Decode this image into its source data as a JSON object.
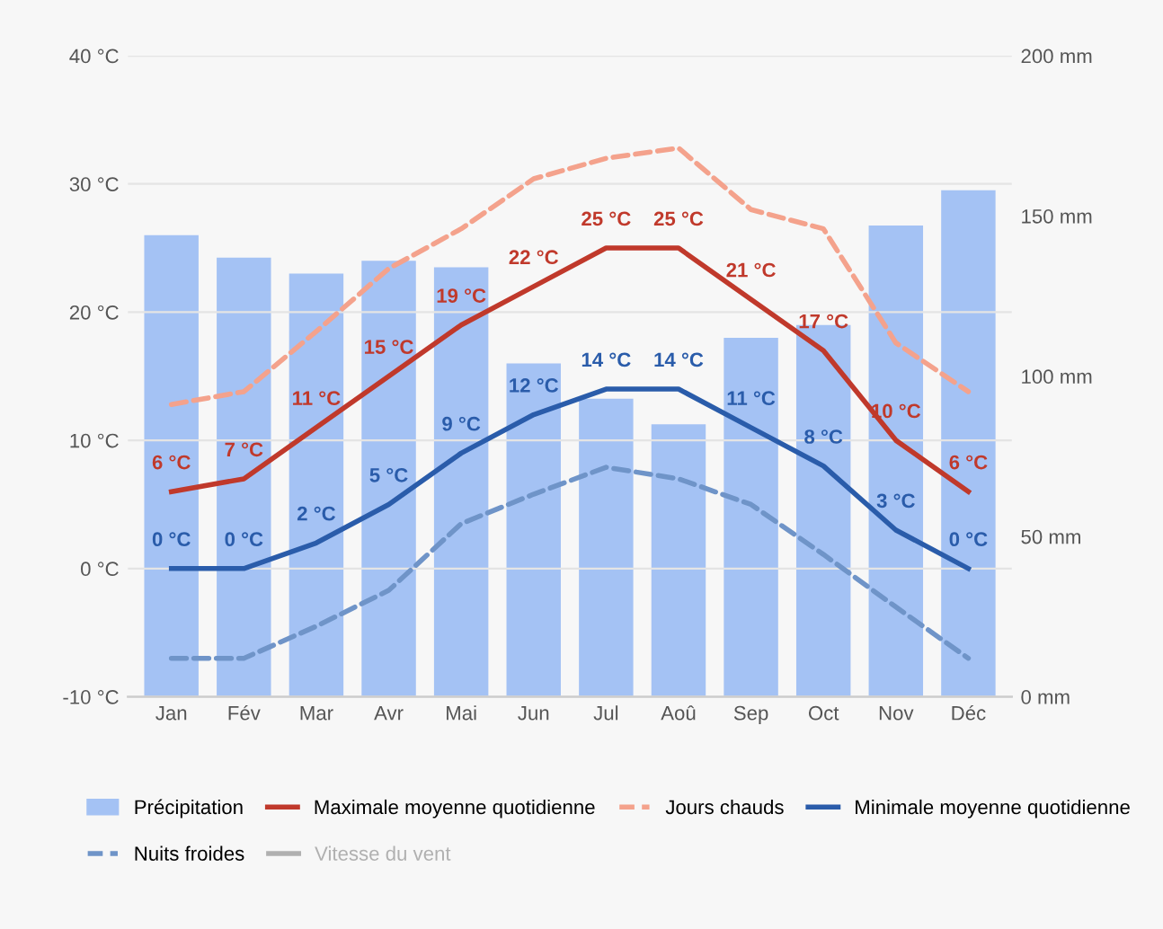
{
  "chart_data": {
    "type": "bar",
    "categories": [
      "Jan",
      "Fév",
      "Mar",
      "Avr",
      "Mai",
      "Jun",
      "Jul",
      "Aoû",
      "Sep",
      "Oct",
      "Nov",
      "Déc"
    ],
    "series": [
      {
        "name": "Précipitation",
        "axis": "y2",
        "color": "#a4c2f4",
        "values": [
          144,
          137,
          132,
          136,
          134,
          104,
          93,
          85,
          112,
          116,
          147,
          158
        ]
      },
      {
        "name": "Maximale moyenne quotidienne",
        "type": "line",
        "color": "#c0392b",
        "line_style": "solid",
        "values": [
          6,
          7,
          11,
          15,
          19,
          22,
          25,
          25,
          21,
          17,
          10,
          6
        ],
        "value_labels": [
          "6 °C",
          "7 °C",
          "11 °C",
          "15 °C",
          "19 °C",
          "22 °C",
          "25 °C",
          "25 °C",
          "21 °C",
          "17 °C",
          "10 °C",
          "6 °C"
        ]
      },
      {
        "name": "Jours chauds",
        "type": "line",
        "color": "#f4a28c",
        "line_style": "dashed",
        "values": [
          12.8,
          13.8,
          18.5,
          23.4,
          26.5,
          30.4,
          32,
          32.8,
          28,
          26.5,
          17.6,
          13.8
        ]
      },
      {
        "name": "Minimale moyenne quotidienne",
        "type": "line",
        "color": "#2a5caa",
        "line_style": "solid",
        "values": [
          0,
          0,
          2,
          5,
          9,
          12,
          14,
          14,
          11,
          8,
          3,
          0
        ],
        "value_labels": [
          "0 °C",
          "0 °C",
          "2 °C",
          "5 °C",
          "9 °C",
          "12 °C",
          "14 °C",
          "14 °C",
          "11 °C",
          "8 °C",
          "3 °C",
          "0 °C"
        ]
      },
      {
        "name": "Nuits froides",
        "type": "line",
        "color": "#6f94c8",
        "line_style": "dashed",
        "values": [
          -7,
          -7,
          -4.5,
          -1.7,
          3.5,
          5.8,
          7.9,
          7,
          5,
          1.1,
          -3,
          -7
        ]
      },
      {
        "name": "Vitesse du vent",
        "type": "line",
        "color": "#b0b0b0",
        "line_style": "solid",
        "values": [
          null,
          null,
          null,
          null,
          null,
          null,
          null,
          null,
          null,
          null,
          null,
          null
        ]
      }
    ],
    "ylim": [
      -10,
      40
    ],
    "yticks": [
      {
        "value": -10,
        "label": "-10 °C"
      },
      {
        "value": 0,
        "label": "0 °C"
      },
      {
        "value": 10,
        "label": "10 °C"
      },
      {
        "value": 20,
        "label": "20 °C"
      },
      {
        "value": 30,
        "label": "30 °C"
      },
      {
        "value": 40,
        "label": "40 °C"
      }
    ],
    "y2lim": [
      0,
      200
    ],
    "y2ticks": [
      {
        "value": 0,
        "label": "0 mm"
      },
      {
        "value": 50,
        "label": "50 mm"
      },
      {
        "value": 100,
        "label": "100 mm"
      },
      {
        "value": 150,
        "label": "150 mm"
      },
      {
        "value": 200,
        "label": "200 mm"
      }
    ],
    "grid": "y",
    "legend": "bottom"
  }
}
